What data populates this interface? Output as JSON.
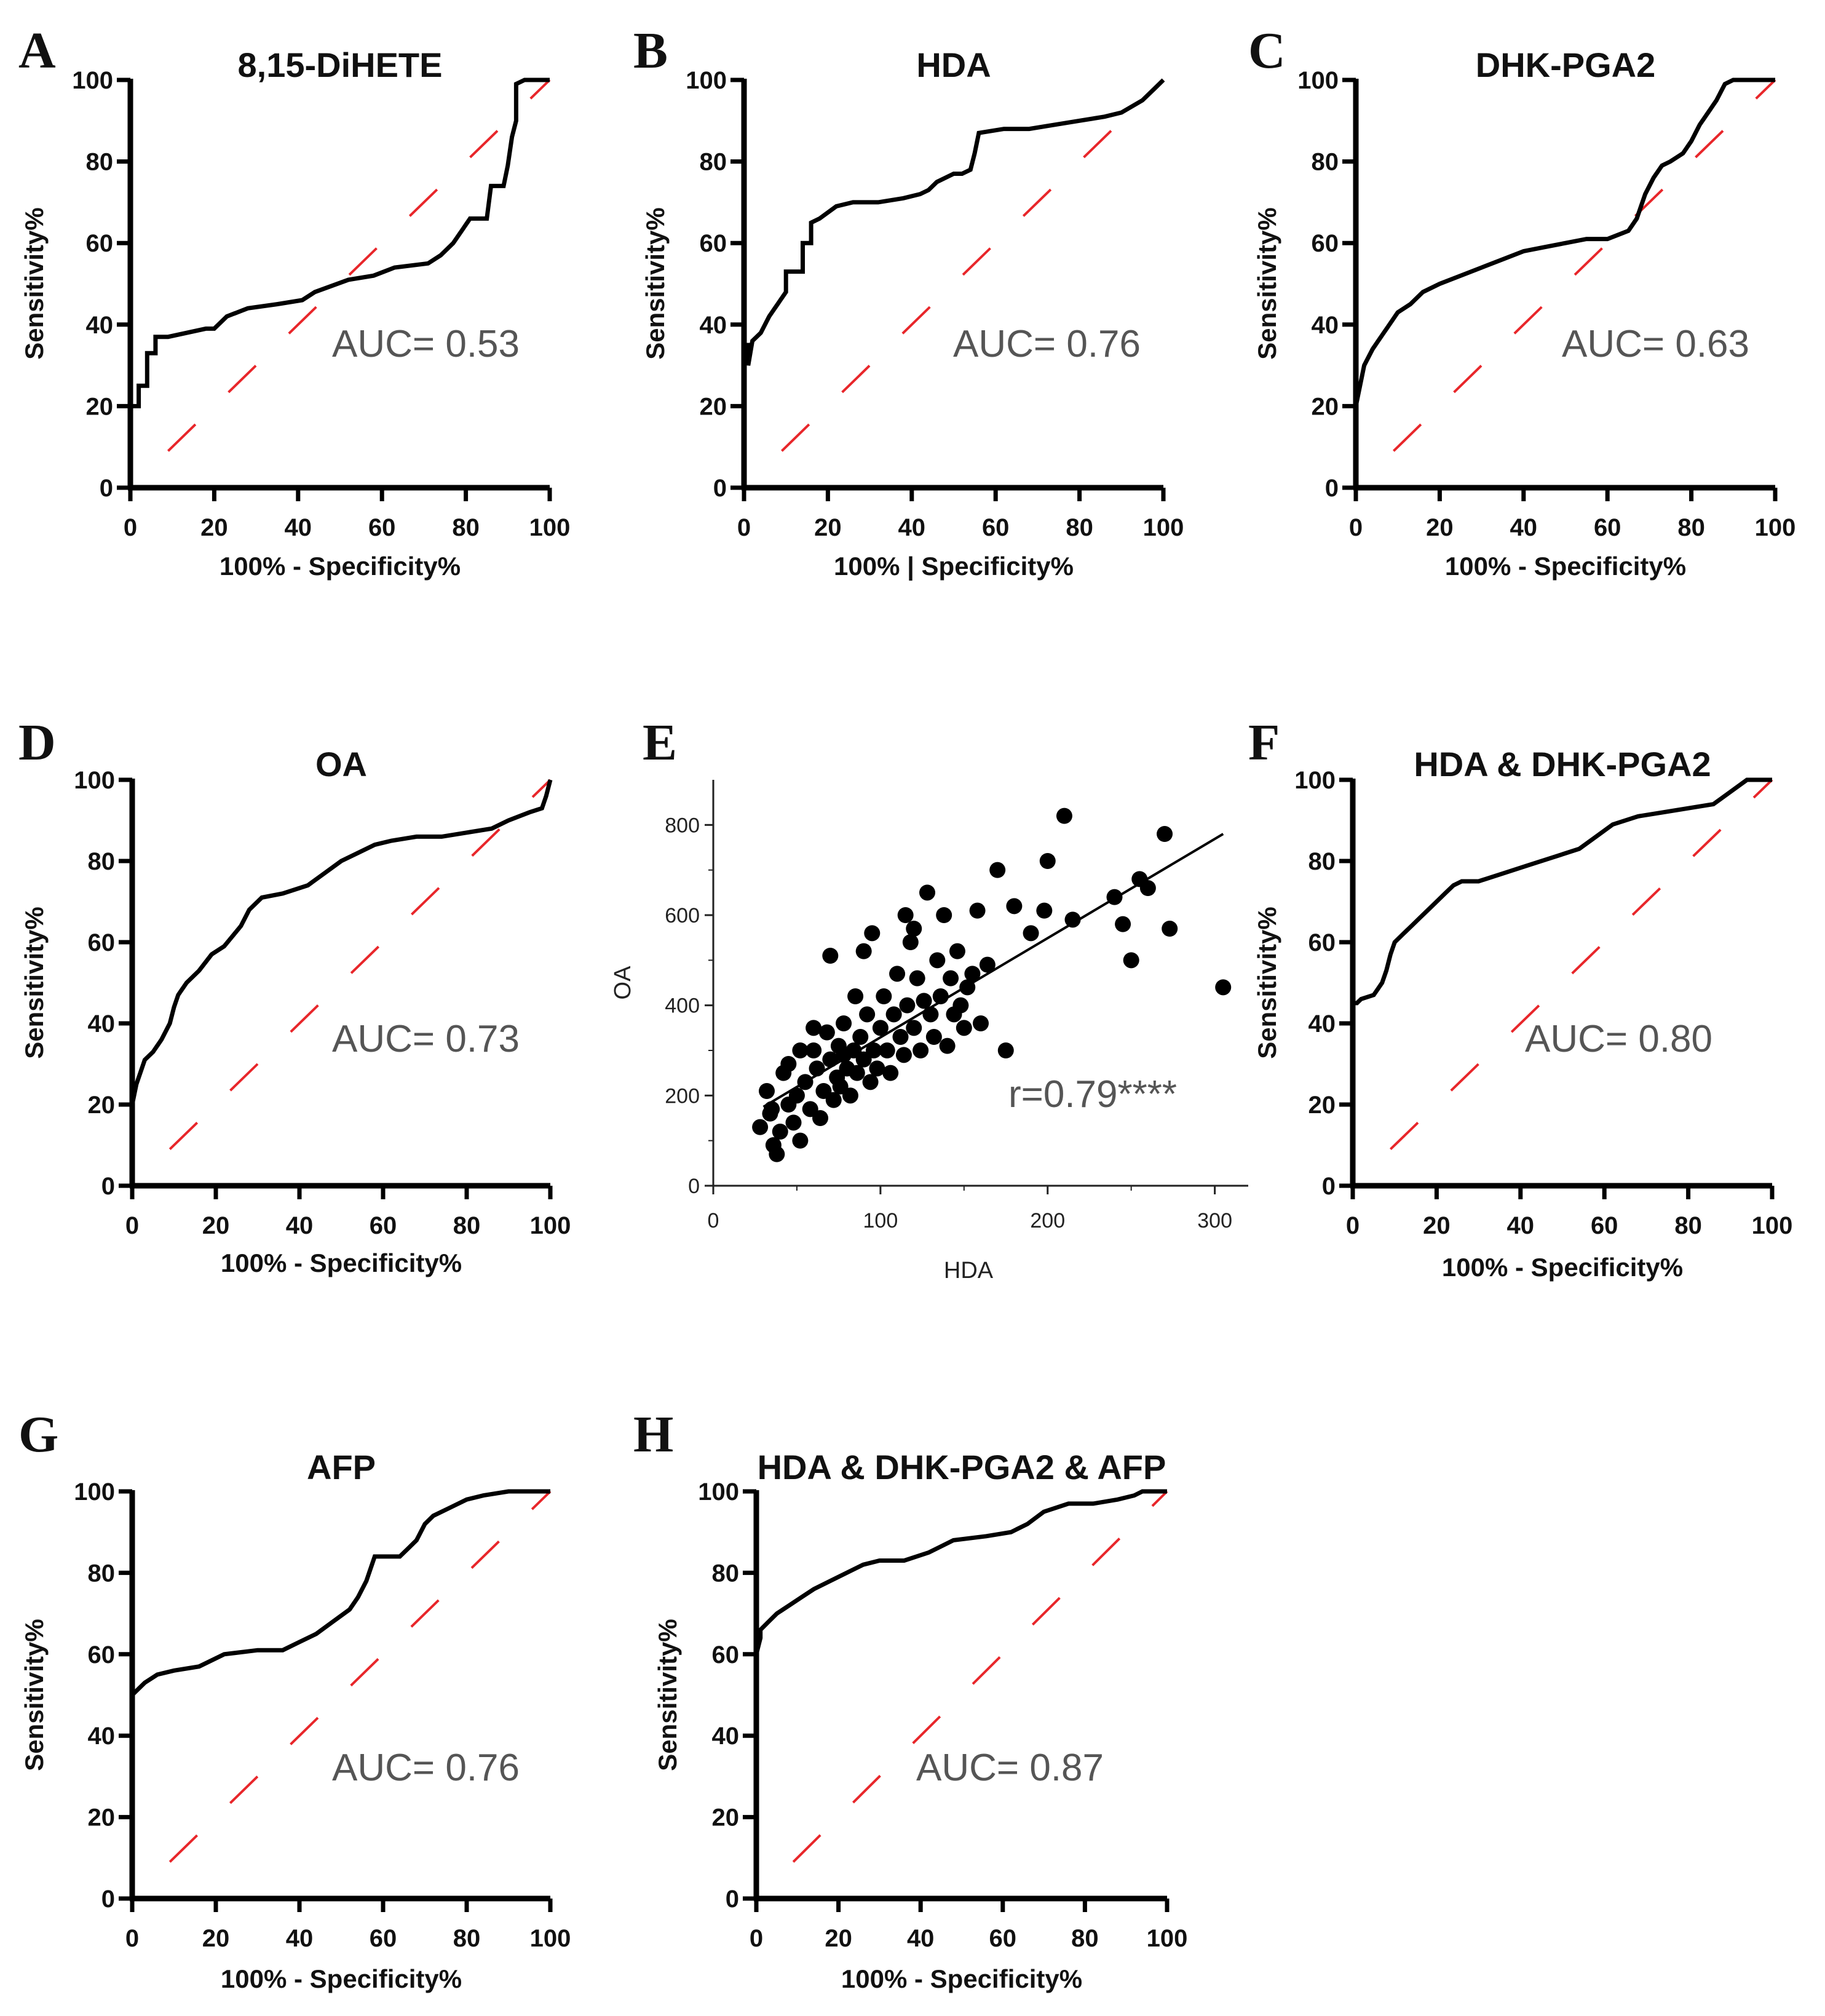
{
  "figure": {
    "panels_note": "ROC curves and correlation scatter",
    "xlabel": "100% - Specificity%",
    "ylabel": "Sensitivity%"
  },
  "chart_data": [
    {
      "id": "A",
      "type": "line",
      "title": "8,15-DiHETE",
      "xlabel": "100% - Specificity%",
      "ylabel": "Sensitivity%",
      "xlim": [
        0,
        100
      ],
      "ylim": [
        0,
        100
      ],
      "xticks": [
        "0",
        "20",
        "40",
        "60",
        "80",
        "100"
      ],
      "yticks": [
        "0",
        "20",
        "40",
        "60",
        "80",
        "100"
      ],
      "annotation": "AUC= 0.53",
      "reference_line": "diagonal, red dashed",
      "series": [
        {
          "name": "ROC",
          "x": [
            0,
            0,
            2,
            2,
            4,
            4,
            6,
            6,
            9,
            18,
            20,
            23,
            28,
            35,
            41,
            44,
            52,
            58,
            63,
            71,
            74,
            77,
            79,
            81,
            85,
            86,
            89,
            90,
            91,
            92,
            92,
            94,
            100
          ],
          "y": [
            15,
            20,
            20,
            25,
            25,
            33,
            33,
            37,
            37,
            39,
            39,
            42,
            44,
            45,
            46,
            48,
            51,
            52,
            54,
            55,
            57,
            60,
            63,
            66,
            66,
            74,
            74,
            79,
            86,
            90,
            99,
            100,
            100
          ]
        }
      ]
    },
    {
      "id": "B",
      "type": "line",
      "title": "HDA",
      "xlabel": "100% | Specificity%",
      "ylabel": "Sensitivity%",
      "xlim": [
        0,
        100
      ],
      "ylim": [
        0,
        100
      ],
      "xticks": [
        "0",
        "20",
        "40",
        "60",
        "80",
        "100"
      ],
      "yticks": [
        "0",
        "20",
        "40",
        "60",
        "80",
        "100"
      ],
      "annotation": "AUC= 0.76",
      "reference_line": "diagonal, red dashed",
      "series": [
        {
          "name": "ROC",
          "x": [
            0,
            0,
            1,
            1,
            2,
            4,
            6,
            8,
            10,
            10,
            14,
            14,
            16,
            16,
            18,
            22,
            26,
            32,
            38,
            42,
            44,
            46,
            50,
            52,
            54,
            55,
            56,
            62,
            68,
            74,
            80,
            86,
            90,
            95,
            98,
            100
          ],
          "y": [
            27,
            35,
            35,
            30,
            36,
            38,
            42,
            45,
            48,
            53,
            53,
            60,
            60,
            65,
            66,
            69,
            70,
            70,
            71,
            72,
            73,
            75,
            77,
            77,
            78,
            82,
            87,
            88,
            88,
            89,
            90,
            91,
            92,
            95,
            98,
            100
          ]
        }
      ]
    },
    {
      "id": "C",
      "type": "line",
      "title": "DHK-PGA2",
      "xlabel": "100% - Specificity%",
      "ylabel": "Sensitivity%",
      "xlim": [
        0,
        100
      ],
      "ylim": [
        0,
        100
      ],
      "xticks": [
        "0",
        "20",
        "40",
        "60",
        "80",
        "100"
      ],
      "yticks": [
        "0",
        "20",
        "40",
        "60",
        "80",
        "100"
      ],
      "annotation": "AUC= 0.63",
      "reference_line": "diagonal, red dashed",
      "series": [
        {
          "name": "ROC",
          "x": [
            0,
            0,
            1,
            2,
            4,
            6,
            8,
            10,
            13,
            16,
            20,
            25,
            30,
            35,
            40,
            45,
            50,
            55,
            60,
            65,
            67,
            69,
            71,
            73,
            75,
            78,
            80,
            82,
            84,
            86,
            88,
            90,
            94,
            100
          ],
          "y": [
            15,
            20,
            25,
            30,
            34,
            37,
            40,
            43,
            45,
            48,
            50,
            52,
            54,
            56,
            58,
            59,
            60,
            61,
            61,
            63,
            66,
            72,
            76,
            79,
            80,
            82,
            85,
            89,
            92,
            95,
            99,
            100,
            100,
            100
          ]
        }
      ]
    },
    {
      "id": "D",
      "type": "line",
      "title": "OA",
      "xlabel": "100% - Specificity%",
      "ylabel": "Sensitivity%",
      "xlim": [
        0,
        100
      ],
      "ylim": [
        0,
        100
      ],
      "xticks": [
        "0",
        "20",
        "40",
        "60",
        "80",
        "100"
      ],
      "yticks": [
        "0",
        "20",
        "40",
        "60",
        "80",
        "100"
      ],
      "annotation": "AUC= 0.73",
      "reference_line": "diagonal, red dashed",
      "series": [
        {
          "name": "ROC",
          "x": [
            0,
            0,
            1,
            2,
            3,
            5,
            7,
            9,
            10,
            11,
            13,
            16,
            19,
            22,
            26,
            28,
            31,
            36,
            42,
            46,
            50,
            54,
            58,
            62,
            68,
            74,
            80,
            86,
            90,
            95,
            98,
            99,
            100
          ],
          "y": [
            14,
            20,
            25,
            28,
            31,
            33,
            36,
            40,
            44,
            47,
            50,
            53,
            57,
            59,
            64,
            68,
            71,
            72,
            74,
            77,
            80,
            82,
            84,
            85,
            86,
            86,
            87,
            88,
            90,
            92,
            93,
            96,
            100
          ]
        }
      ]
    },
    {
      "id": "E",
      "type": "scatter",
      "title": "",
      "xlabel": "HDA",
      "ylabel": "OA",
      "xlim": [
        0,
        320
      ],
      "ylim": [
        0,
        900
      ],
      "xticks": [
        "0",
        "100",
        "200",
        "300"
      ],
      "yticks": [
        "0",
        "200",
        "400",
        "600",
        "800"
      ],
      "annotation": "r=0.79****",
      "regression": {
        "x": [
          30,
          305
        ],
        "y": [
          175,
          780
        ]
      },
      "points": [
        [
          28,
          130
        ],
        [
          32,
          210
        ],
        [
          34,
          160
        ],
        [
          36,
          90
        ],
        [
          38,
          70
        ],
        [
          40,
          120
        ],
        [
          42,
          250
        ],
        [
          45,
          180
        ],
        [
          48,
          140
        ],
        [
          50,
          200
        ],
        [
          52,
          100
        ],
        [
          55,
          230
        ],
        [
          58,
          170
        ],
        [
          60,
          300
        ],
        [
          62,
          260
        ],
        [
          64,
          150
        ],
        [
          66,
          210
        ],
        [
          68,
          340
        ],
        [
          70,
          280
        ],
        [
          72,
          190
        ],
        [
          74,
          240
        ],
        [
          75,
          310
        ],
        [
          76,
          220
        ],
        [
          78,
          360
        ],
        [
          80,
          260
        ],
        [
          82,
          200
        ],
        [
          84,
          300
        ],
        [
          85,
          420
        ],
        [
          86,
          250
        ],
        [
          88,
          330
        ],
        [
          90,
          280
        ],
        [
          92,
          380
        ],
        [
          94,
          230
        ],
        [
          95,
          560
        ],
        [
          96,
          300
        ],
        [
          98,
          260
        ],
        [
          100,
          350
        ],
        [
          102,
          420
        ],
        [
          104,
          300
        ],
        [
          106,
          250
        ],
        [
          108,
          380
        ],
        [
          110,
          470
        ],
        [
          112,
          330
        ],
        [
          114,
          290
        ],
        [
          115,
          600
        ],
        [
          116,
          400
        ],
        [
          118,
          540
        ],
        [
          120,
          350
        ],
        [
          122,
          460
        ],
        [
          124,
          300
        ],
        [
          126,
          410
        ],
        [
          128,
          650
        ],
        [
          130,
          380
        ],
        [
          132,
          330
        ],
        [
          134,
          500
        ],
        [
          136,
          420
        ],
        [
          138,
          600
        ],
        [
          140,
          310
        ],
        [
          142,
          460
        ],
        [
          144,
          380
        ],
        [
          146,
          520
        ],
        [
          148,
          400
        ],
        [
          150,
          350
        ],
        [
          152,
          440
        ],
        [
          155,
          470
        ],
        [
          158,
          610
        ],
        [
          160,
          360
        ],
        [
          164,
          490
        ],
        [
          170,
          700
        ],
        [
          175,
          300
        ],
        [
          180,
          620
        ],
        [
          190,
          560
        ],
        [
          198,
          610
        ],
        [
          200,
          720
        ],
        [
          210,
          820
        ],
        [
          215,
          590
        ],
        [
          240,
          640
        ],
        [
          245,
          580
        ],
        [
          250,
          500
        ],
        [
          255,
          680
        ],
        [
          260,
          660
        ],
        [
          270,
          780
        ],
        [
          273,
          570
        ],
        [
          305,
          440
        ],
        [
          60,
          350
        ],
        [
          90,
          520
        ],
        [
          45,
          270
        ],
        [
          70,
          510
        ],
        [
          120,
          570
        ],
        [
          35,
          170
        ],
        [
          52,
          300
        ],
        [
          78,
          290
        ]
      ]
    },
    {
      "id": "F",
      "type": "line",
      "title": "HDA & DHK-PGA2",
      "xlabel": "100% - Specificity%",
      "ylabel": "Sensitivity%",
      "xlim": [
        0,
        100
      ],
      "ylim": [
        0,
        100
      ],
      "xticks": [
        "0",
        "20",
        "40",
        "60",
        "80",
        "100"
      ],
      "yticks": [
        "0",
        "20",
        "40",
        "60",
        "80",
        "100"
      ],
      "annotation": "AUC= 0.80",
      "reference_line": "diagonal, red dashed",
      "series": [
        {
          "name": "ROC",
          "x": [
            0,
            0,
            1,
            2,
            5,
            7,
            8,
            9,
            10,
            12,
            14,
            16,
            18,
            20,
            22,
            24,
            26,
            30,
            36,
            42,
            48,
            54,
            58,
            62,
            68,
            74,
            80,
            86,
            90,
            94,
            100
          ],
          "y": [
            40,
            45,
            45,
            46,
            47,
            50,
            53,
            57,
            60,
            62,
            64,
            66,
            68,
            70,
            72,
            74,
            75,
            75,
            77,
            79,
            81,
            83,
            86,
            89,
            91,
            92,
            93,
            94,
            97,
            100,
            100
          ]
        }
      ]
    },
    {
      "id": "G",
      "type": "line",
      "title": "AFP",
      "xlabel": "100% - Specificity%",
      "ylabel": "Sensitivity%",
      "xlim": [
        0,
        100
      ],
      "ylim": [
        0,
        100
      ],
      "xticks": [
        "0",
        "20",
        "40",
        "60",
        "80",
        "100"
      ],
      "yticks": [
        "0",
        "20",
        "40",
        "60",
        "80",
        "100"
      ],
      "annotation": "AUC= 0.76",
      "reference_line": "diagonal, red dashed",
      "series": [
        {
          "name": "ROC",
          "x": [
            0,
            0,
            1,
            3,
            6,
            10,
            16,
            22,
            30,
            36,
            40,
            44,
            48,
            52,
            54,
            56,
            58,
            64,
            66,
            68,
            70,
            72,
            76,
            80,
            84,
            90,
            100
          ],
          "y": [
            47,
            50,
            51,
            53,
            55,
            56,
            57,
            60,
            61,
            61,
            63,
            65,
            68,
            71,
            74,
            78,
            84,
            84,
            86,
            88,
            92,
            94,
            96,
            98,
            99,
            100,
            100
          ]
        }
      ]
    },
    {
      "id": "H",
      "type": "line",
      "title": "HDA & DHK-PGA2 & AFP",
      "xlabel": "100% - Specificity%",
      "ylabel": "Sensitivity%",
      "xlim": [
        0,
        100
      ],
      "ylim": [
        0,
        100
      ],
      "xticks": [
        "0",
        "20",
        "40",
        "60",
        "80",
        "100"
      ],
      "yticks": [
        "0",
        "20",
        "40",
        "60",
        "80",
        "100"
      ],
      "annotation": "AUC= 0.87",
      "reference_line": "diagonal, red dashed",
      "series": [
        {
          "name": "ROC",
          "x": [
            0,
            0,
            1,
            1,
            3,
            5,
            8,
            11,
            14,
            18,
            22,
            26,
            30,
            36,
            42,
            48,
            56,
            62,
            66,
            70,
            76,
            82,
            88,
            92,
            94,
            100
          ],
          "y": [
            50,
            60,
            64,
            66,
            68,
            70,
            72,
            74,
            76,
            78,
            80,
            82,
            83,
            83,
            85,
            88,
            89,
            90,
            92,
            95,
            97,
            97,
            98,
            99,
            100,
            100
          ]
        }
      ]
    }
  ]
}
